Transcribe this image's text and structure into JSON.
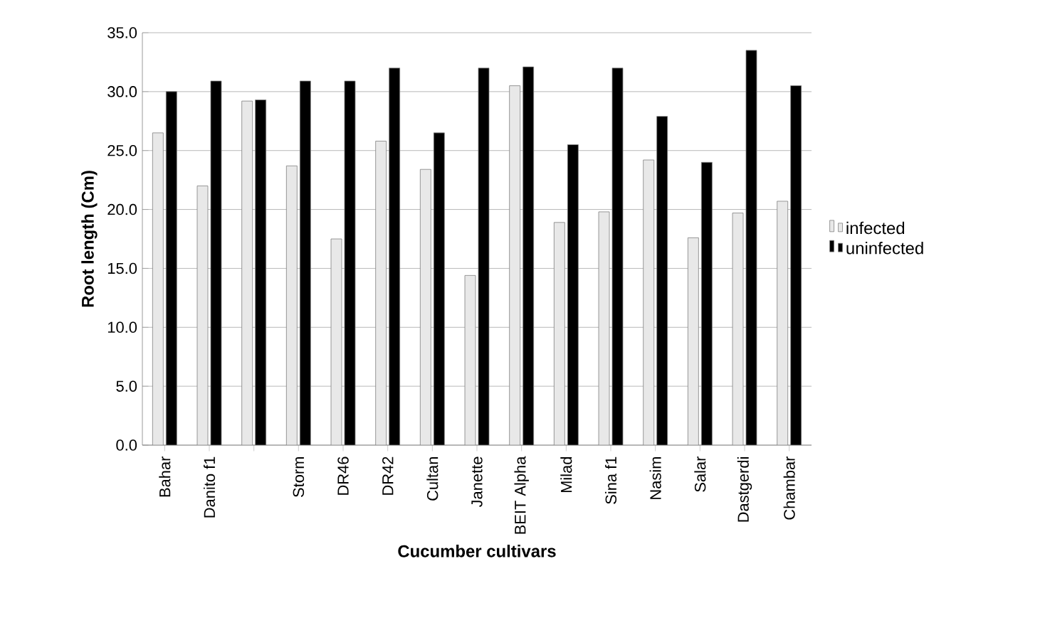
{
  "chart_data": {
    "type": "bar",
    "xlabel": "Cucumber cultivars",
    "ylabel": "Root length (Cm)",
    "categories": [
      "Bahar",
      "Danito f1",
      null,
      "Storm",
      "DR46",
      "DR42",
      "Cultan",
      "Janette",
      "BEIT Alpha",
      "Milad",
      "Sina f1",
      "Nasim",
      "Salar",
      "Dastgerdi",
      "Chambar"
    ],
    "series": [
      {
        "name": "infected",
        "color": "#e8e8e8",
        "values": [
          26.5,
          22.0,
          29.2,
          23.7,
          17.5,
          25.8,
          23.4,
          14.4,
          30.5,
          18.9,
          19.8,
          24.2,
          17.6,
          19.7,
          20.7
        ]
      },
      {
        "name": "uninfected",
        "color": "#000000",
        "values": [
          30.0,
          30.9,
          29.3,
          30.9,
          30.9,
          32.0,
          26.5,
          32.0,
          32.1,
          25.5,
          32.0,
          27.9,
          24.0,
          33.5,
          30.5
        ]
      }
    ],
    "ylim": [
      0,
      35
    ],
    "yticks": [
      {
        "value": 0,
        "label": "0.0"
      },
      {
        "value": 5,
        "label": "5.0"
      },
      {
        "value": 10,
        "label": "10.0"
      },
      {
        "value": 15,
        "label": "15.0"
      },
      {
        "value": 20,
        "label": "20.0"
      },
      {
        "value": 25,
        "label": "25.0"
      },
      {
        "value": 30,
        "label": "30.0"
      },
      {
        "value": 35,
        "label": "35.0"
      }
    ],
    "grid": "y",
    "legend": "right"
  }
}
